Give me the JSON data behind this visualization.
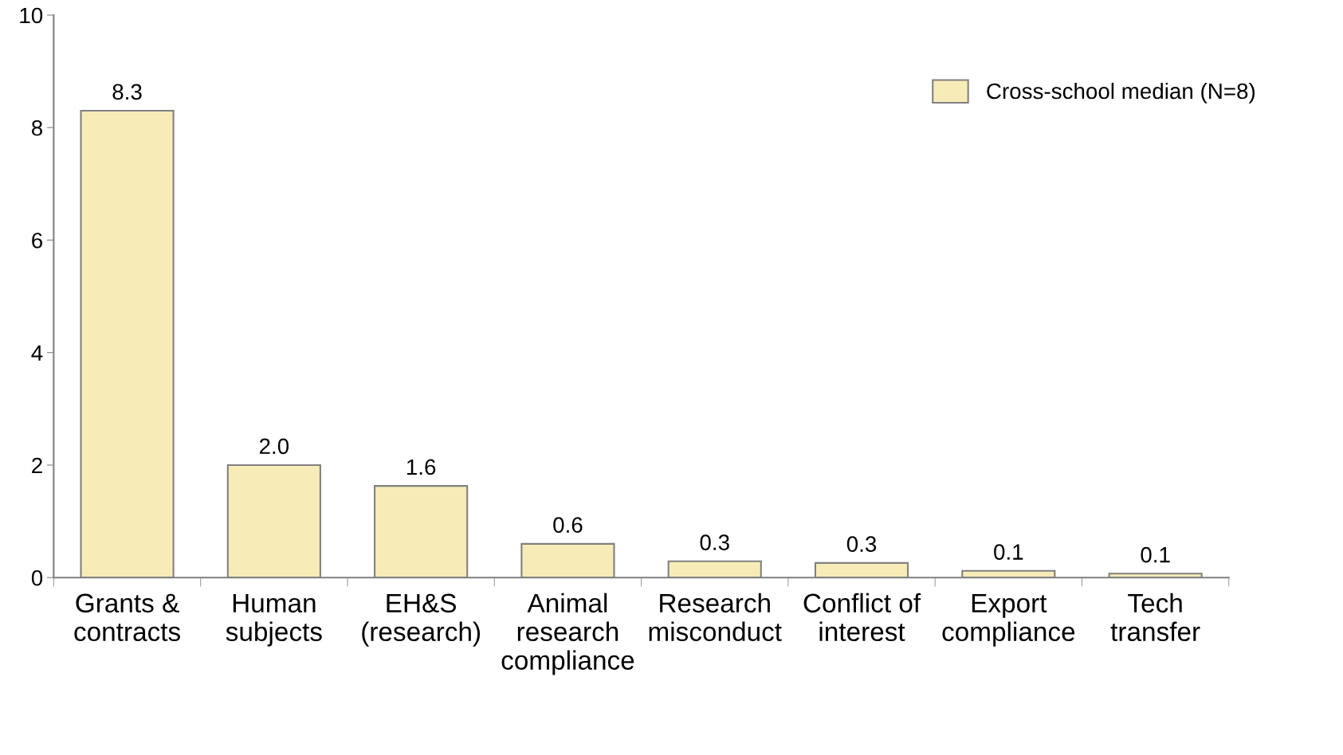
{
  "chart_data": {
    "type": "bar",
    "categories": [
      "Grants &\ncontracts",
      "Human\nsubjects",
      "EH&S\n(research)",
      "Animal\nresearch\ncompliance",
      "Research\nmisconduct",
      "Conflict of\ninterest",
      "Export\ncompliance",
      "Tech\ntransfer"
    ],
    "series": [
      {
        "name": "Cross-school median (N=8)",
        "color": "#f7ecb8",
        "values": [
          8.3,
          2.0,
          1.63,
          0.6,
          0.29,
          0.26,
          0.12,
          0.07
        ],
        "value_labels": [
          "8.3",
          "2.0",
          "1.6",
          "0.6",
          "0.3",
          "0.3",
          "0.1",
          "0.1"
        ]
      }
    ],
    "ylim": [
      0,
      10
    ],
    "yticks": [
      0,
      2,
      4,
      6,
      8,
      10
    ],
    "grid": false,
    "legend": "top right"
  }
}
